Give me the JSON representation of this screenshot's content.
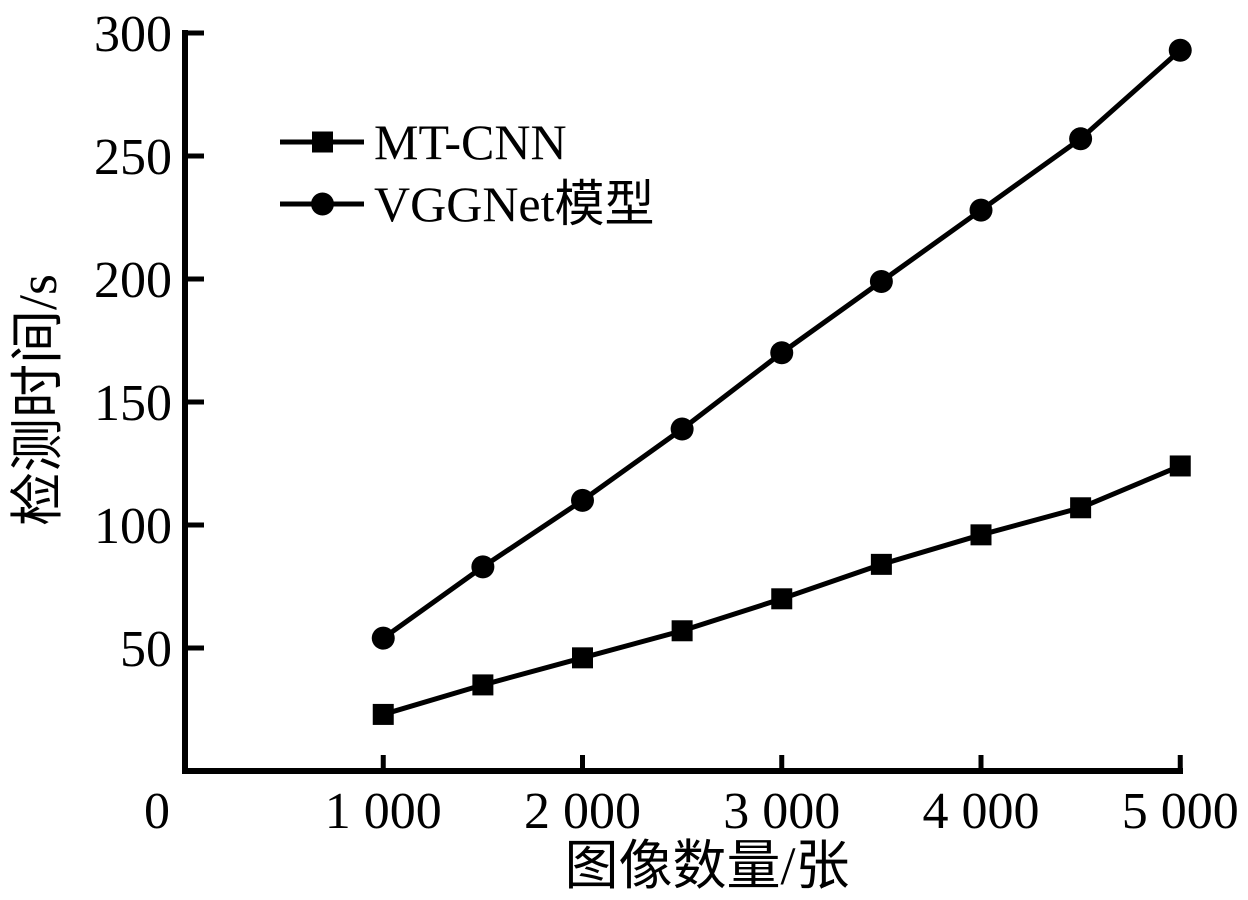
{
  "chart_data": {
    "type": "line",
    "title": "",
    "xlabel": "图像数量/张",
    "ylabel": "检测时间/s",
    "x": [
      1000,
      1500,
      2000,
      2500,
      3000,
      3500,
      4000,
      4500,
      5000
    ],
    "series": [
      {
        "name": "MT-CNN",
        "marker": "square",
        "values": [
          23,
          35,
          46,
          57,
          70,
          84,
          96,
          107,
          124
        ]
      },
      {
        "name": "VGGNet模型",
        "marker": "circle",
        "values": [
          54,
          83,
          110,
          139,
          170,
          199,
          228,
          257,
          293
        ]
      }
    ],
    "xlim": [
      0,
      5000
    ],
    "ylim": [
      0,
      300
    ],
    "xticks": [
      {
        "value": 0,
        "label": "0",
        "dx": -27
      },
      {
        "value": 1000,
        "label": "1 000"
      },
      {
        "value": 2000,
        "label": "2 000"
      },
      {
        "value": 3000,
        "label": "3 000"
      },
      {
        "value": 4000,
        "label": "4 000"
      },
      {
        "value": 5000,
        "label": "5 000"
      }
    ],
    "yticks": [
      {
        "value": 50,
        "label": "50"
      },
      {
        "value": 100,
        "label": "100"
      },
      {
        "value": 150,
        "label": "150"
      },
      {
        "value": 200,
        "label": "200"
      },
      {
        "value": 250,
        "label": "250"
      },
      {
        "value": 300,
        "label": "300"
      }
    ],
    "grid": false,
    "legend_position": "upper-left-inside",
    "colors": {
      "line": "#000000",
      "background": "#ffffff",
      "text": "#000000"
    }
  }
}
